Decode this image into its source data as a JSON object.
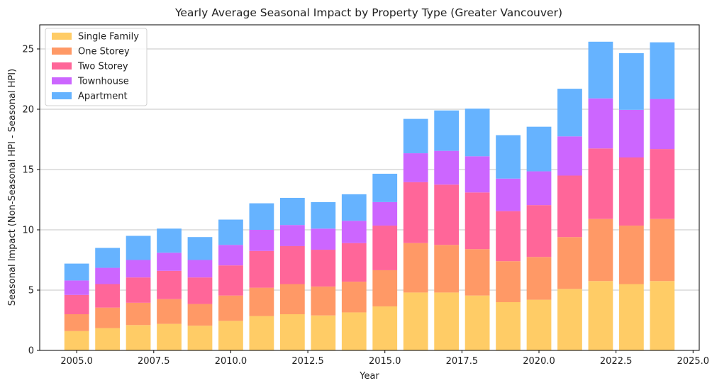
{
  "chart_data": {
    "type": "bar",
    "stacked": true,
    "title": "Yearly Average Seasonal Impact by Property Type (Greater Vancouver)",
    "xlabel": "Year",
    "ylabel": "Seasonal Impact (Non-Seasonal HPI - Seasonal HPI)",
    "x": [
      2005,
      2006,
      2007,
      2008,
      2009,
      2010,
      2011,
      2012,
      2013,
      2014,
      2015,
      2016,
      2017,
      2018,
      2019,
      2020,
      2021,
      2022,
      2023,
      2024
    ],
    "xlim": [
      2003.8,
      2025.2
    ],
    "ylim": [
      0,
      27
    ],
    "xticks": [
      "2005.0",
      "2007.5",
      "2010.0",
      "2012.5",
      "2015.0",
      "2017.5",
      "2020.0",
      "2022.5",
      "2025.0"
    ],
    "yticks": [
      "0",
      "5",
      "10",
      "15",
      "20",
      "25"
    ],
    "grid": "y",
    "legend_position": "top-left",
    "series": [
      {
        "name": "Single Family",
        "color": "#FFCC66",
        "values": [
          1.6,
          1.85,
          2.1,
          2.2,
          2.05,
          2.45,
          2.85,
          3.0,
          2.9,
          3.15,
          3.65,
          4.8,
          4.8,
          4.55,
          4.0,
          4.2,
          5.1,
          5.75,
          5.5,
          5.75
        ]
      },
      {
        "name": "One Storey",
        "color": "#FF9966",
        "values": [
          1.4,
          1.7,
          1.85,
          2.05,
          1.8,
          2.1,
          2.35,
          2.5,
          2.4,
          2.55,
          3.0,
          4.1,
          3.95,
          3.85,
          3.4,
          3.55,
          4.3,
          5.15,
          4.85,
          5.15
        ]
      },
      {
        "name": "Two Storey",
        "color": "#FF6699",
        "values": [
          1.6,
          1.95,
          2.1,
          2.35,
          2.2,
          2.5,
          3.05,
          3.15,
          3.05,
          3.2,
          3.7,
          5.05,
          5.0,
          4.7,
          4.15,
          4.3,
          5.1,
          5.85,
          5.65,
          5.8
        ]
      },
      {
        "name": "Townhouse",
        "color": "#CC66FF",
        "values": [
          1.2,
          1.35,
          1.45,
          1.5,
          1.45,
          1.7,
          1.75,
          1.75,
          1.75,
          1.85,
          1.95,
          2.4,
          2.8,
          3.0,
          2.7,
          2.8,
          3.25,
          4.15,
          3.95,
          4.15
        ]
      },
      {
        "name": "Apartment",
        "color": "#66B3FF",
        "values": [
          1.4,
          1.65,
          2.0,
          2.0,
          1.9,
          2.1,
          2.2,
          2.25,
          2.2,
          2.2,
          2.35,
          2.85,
          3.35,
          3.95,
          3.6,
          3.7,
          3.95,
          4.7,
          4.7,
          4.7
        ]
      }
    ]
  }
}
